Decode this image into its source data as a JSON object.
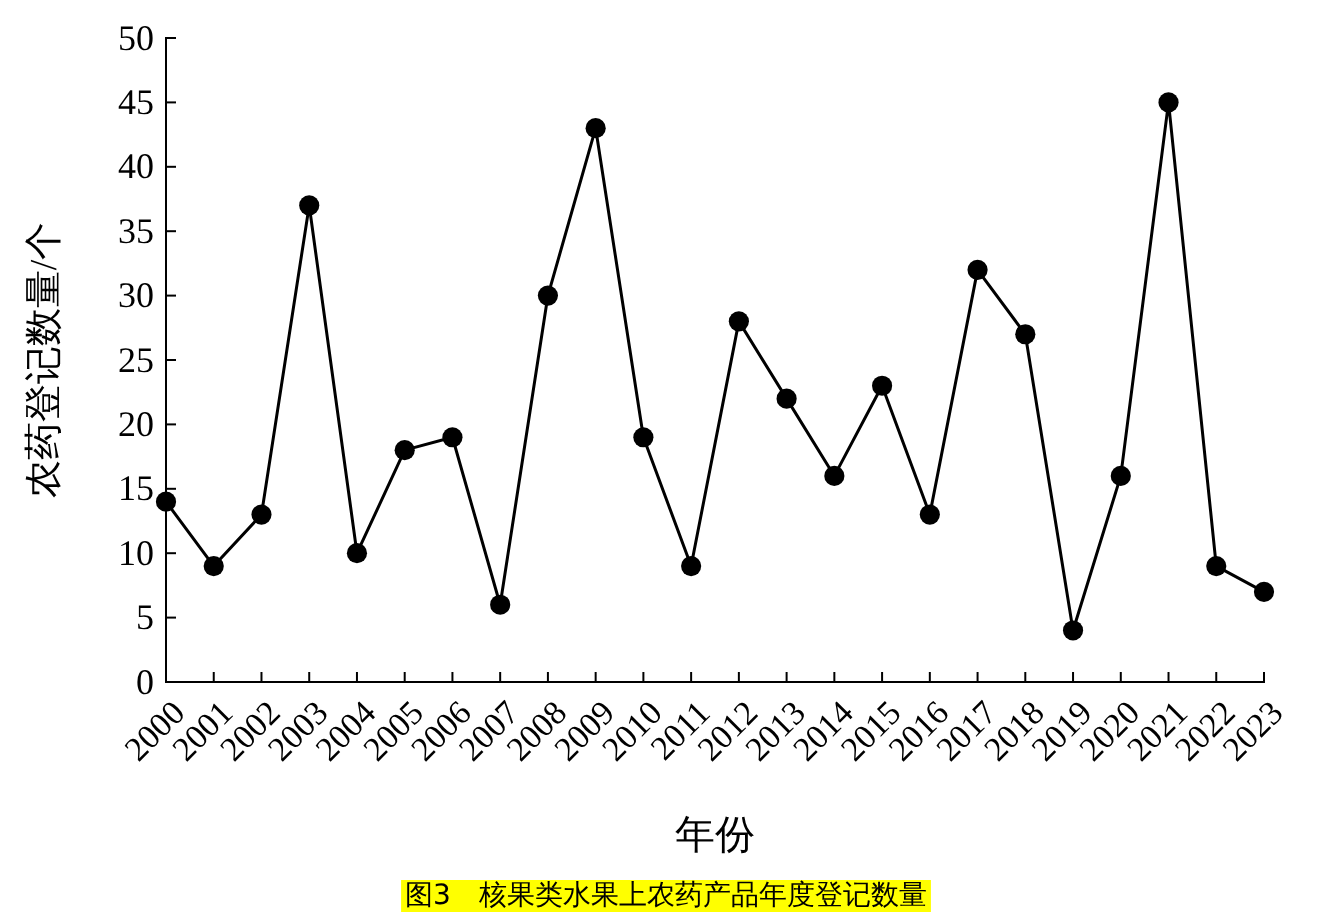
{
  "chart_data": {
    "type": "line",
    "title": "图3　核果类水果上农药产品年度登记数量",
    "xlabel": "年份",
    "ylabel": "农药登记数量/个",
    "x": [
      2000,
      2001,
      2002,
      2003,
      2004,
      2005,
      2006,
      2007,
      2008,
      2009,
      2010,
      2011,
      2012,
      2013,
      2014,
      2015,
      2016,
      2017,
      2018,
      2019,
      2020,
      2021,
      2022,
      2023
    ],
    "series": [
      {
        "color": "#000000",
        "values": [
          14,
          9,
          13,
          37,
          10,
          18,
          19,
          6,
          30,
          43,
          19,
          9,
          28,
          22,
          16,
          23,
          13,
          32,
          27,
          4,
          16,
          45,
          9,
          7
        ]
      }
    ],
    "xlim": [
      2000,
      2023
    ],
    "xticks": [
      2000,
      2001,
      2002,
      2003,
      2004,
      2005,
      2006,
      2007,
      2008,
      2009,
      2010,
      2011,
      2012,
      2013,
      2014,
      2015,
      2016,
      2017,
      2018,
      2019,
      2020,
      2021,
      2022,
      2023
    ],
    "ylim": [
      0,
      50
    ],
    "yticks": [
      0,
      5,
      10,
      15,
      20,
      25,
      30,
      35,
      40,
      45,
      50
    ],
    "marker": "circle",
    "line_style": "solid"
  }
}
